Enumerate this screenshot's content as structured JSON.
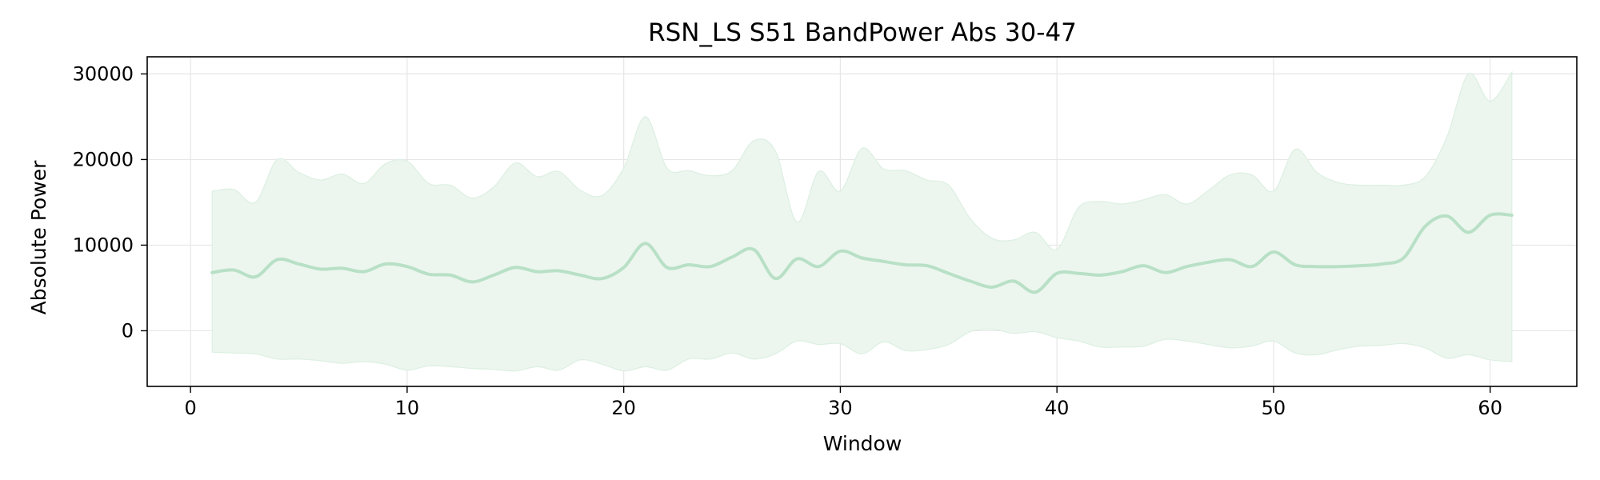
{
  "chart_data": {
    "type": "line",
    "title": "RSN_LS S51 BandPower Abs 30-47",
    "xlabel": "Window",
    "ylabel": "Absolute Power",
    "xlim": [
      -2,
      64
    ],
    "ylim": [
      -6500,
      32000
    ],
    "xticks": [
      0,
      10,
      20,
      30,
      40,
      50,
      60
    ],
    "yticks": [
      0,
      10000,
      20000,
      30000
    ],
    "grid": true,
    "colors": {
      "line": "#b8e0c6",
      "band": "#ecf6ee",
      "band_edge": "#dcefe2",
      "grid": "#e6e6e6"
    },
    "series": [
      {
        "x": [
          1,
          2,
          3,
          4,
          5,
          6,
          7,
          8,
          9,
          10,
          11,
          12,
          13,
          14,
          15,
          16,
          17,
          18,
          19,
          20,
          21,
          22,
          23,
          24,
          25,
          26,
          27,
          28,
          29,
          30,
          31,
          32,
          33,
          34,
          35,
          36,
          37,
          38,
          39,
          40,
          41,
          42,
          43,
          44,
          45,
          46,
          47,
          48,
          49,
          50,
          51,
          52,
          53,
          54,
          55,
          56,
          57,
          58,
          59,
          60,
          61
        ],
        "mean": [
          6800,
          7100,
          6300,
          8300,
          7800,
          7200,
          7300,
          6900,
          7800,
          7500,
          6600,
          6500,
          5700,
          6500,
          7400,
          6900,
          7000,
          6500,
          6100,
          7400,
          10200,
          7400,
          7700,
          7500,
          8600,
          9500,
          6100,
          8400,
          7500,
          9300,
          8500,
          8100,
          7700,
          7600,
          6700,
          5800,
          5100,
          5800,
          4500,
          6700,
          6700,
          6500,
          6900,
          7600,
          6800,
          7500,
          8000,
          8300,
          7500,
          9200,
          7700,
          7500,
          7500,
          7600,
          7800,
          8500,
          12200,
          13400,
          11500,
          13500,
          13500
        ],
        "upper": [
          16300,
          16500,
          15000,
          20000,
          18500,
          17600,
          18300,
          17200,
          19500,
          19800,
          17200,
          17000,
          15500,
          16800,
          19600,
          18000,
          18600,
          16400,
          15800,
          19000,
          25000,
          19000,
          18700,
          18100,
          18700,
          22200,
          21000,
          12700,
          18600,
          16300,
          21300,
          18900,
          18700,
          17600,
          17000,
          13100,
          10800,
          10600,
          11500,
          9500,
          14400,
          15100,
          14800,
          15300,
          15900,
          14800,
          16400,
          18200,
          18200,
          16300,
          21200,
          18500,
          17300,
          17000,
          17000,
          17000,
          18000,
          22600,
          30000,
          26800,
          30200
        ]
      }
    ],
    "lower_band": [
      -2500,
      -2600,
      -2700,
      -3300,
      -3300,
      -3500,
      -3800,
      -3600,
      -3900,
      -4600,
      -4100,
      -4200,
      -4400,
      -4500,
      -4700,
      -4200,
      -4600,
      -3400,
      -3900,
      -4700,
      -4200,
      -4600,
      -3300,
      -3300,
      -2600,
      -3300,
      -2700,
      -1200,
      -1600,
      -1500,
      -2700,
      -1300,
      -2300,
      -2200,
      -1600,
      -100,
      200,
      -300,
      -100,
      -800,
      -1200,
      -1900,
      -1900,
      -1800,
      -1000,
      -1200,
      -1600,
      -2000,
      -1800,
      -1200,
      -2600,
      -2800,
      -2200,
      -1800,
      -1700,
      -1500,
      -2000,
      -3200,
      -2800,
      -3400,
      -3600
    ]
  }
}
